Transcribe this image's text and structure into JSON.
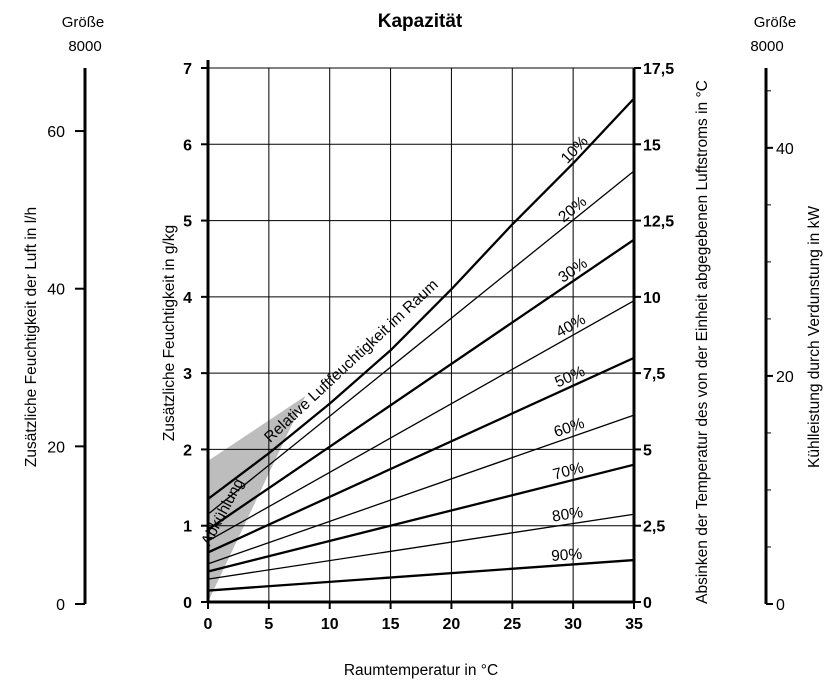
{
  "chart_data": {
    "type": "line",
    "title": "Kapazität",
    "xlabel": "Raumtemperatur in °C",
    "ylabel_left": "Zusätzliche Feuchtigkeit in g/kg",
    "ylabel_right": "Absinken der Temperatur des von der Einheit abgegebenen Luftstroms in °C",
    "xlim": [
      0,
      35
    ],
    "ylim": [
      0,
      7
    ],
    "x_ticks": [
      "0",
      "5",
      "10",
      "15",
      "20",
      "25",
      "30",
      "35"
    ],
    "y_ticks_left": [
      "0",
      "1",
      "2",
      "3",
      "4",
      "5",
      "6",
      "7"
    ],
    "y_ticks_right": [
      "0",
      "2,5",
      "5",
      "7,5",
      "10",
      "12,5",
      "15",
      "17,5"
    ],
    "grid": true,
    "annotations": {
      "humidity_label": "Relative Luftfeuchtigkeit im Raum",
      "cooling_label": "Abkühlung"
    },
    "series": [
      {
        "name": "10%",
        "x": [
          0,
          5,
          10,
          15,
          20,
          25,
          30,
          35
        ],
        "y": [
          1.35,
          1.95,
          2.6,
          3.3,
          4.1,
          4.95,
          5.75,
          6.6
        ]
      },
      {
        "name": "20%",
        "x": [
          0,
          35
        ],
        "y": [
          1.15,
          5.65
        ]
      },
      {
        "name": "30%",
        "x": [
          0,
          35
        ],
        "y": [
          0.95,
          4.75
        ]
      },
      {
        "name": "40%",
        "x": [
          0,
          35
        ],
        "y": [
          0.8,
          3.95
        ]
      },
      {
        "name": "50%",
        "x": [
          0,
          35
        ],
        "y": [
          0.65,
          3.2
        ]
      },
      {
        "name": "60%",
        "x": [
          0,
          35
        ],
        "y": [
          0.5,
          2.45
        ]
      },
      {
        "name": "70%",
        "x": [
          0,
          35
        ],
        "y": [
          0.4,
          1.8
        ]
      },
      {
        "name": "80%",
        "x": [
          0,
          35
        ],
        "y": [
          0.3,
          1.15
        ]
      },
      {
        "name": "90%",
        "x": [
          0,
          35
        ],
        "y": [
          0.15,
          0.55
        ]
      }
    ],
    "cooling_region": {
      "x": [
        0,
        0,
        8,
        0
      ],
      "y": [
        0,
        1.85,
        2.7,
        0
      ]
    },
    "side_scales": {
      "left": {
        "header": "Größe",
        "model": "8000",
        "label": "Zusätzliche Feuchtigkeit der Luft in l/h",
        "ticks": [
          "0",
          "20",
          "40",
          "60"
        ],
        "ylim": [
          0,
          68
        ]
      },
      "right": {
        "header": "Größe",
        "model": "8000",
        "label": "Kühlleistung durch Verdunstung in kW",
        "ticks": [
          "0",
          "20",
          "40"
        ],
        "ylim": [
          0,
          47
        ]
      }
    }
  }
}
